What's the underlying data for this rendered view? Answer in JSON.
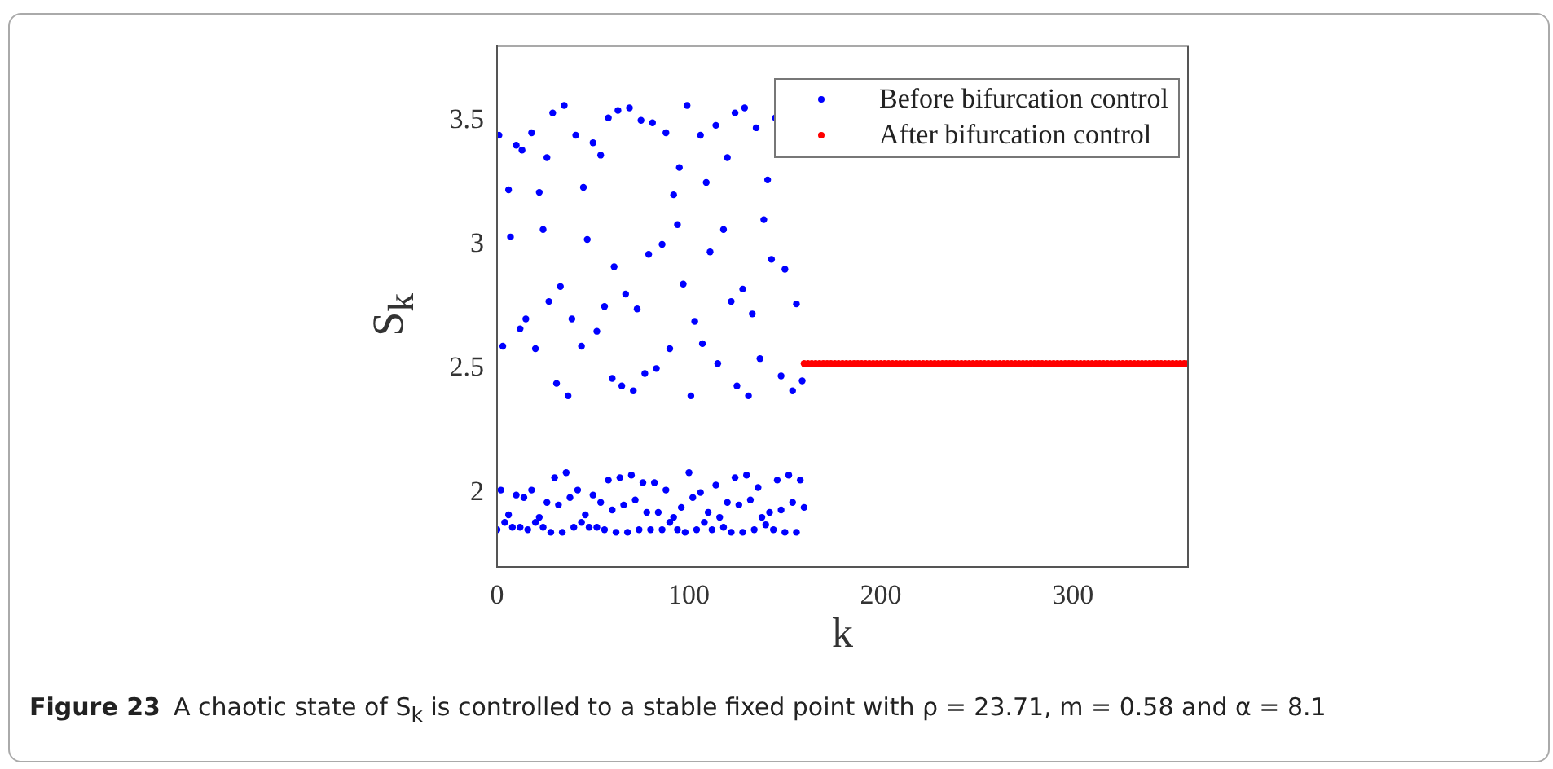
{
  "chart_data": {
    "type": "scatter",
    "xlabel": "k",
    "ylabel": "S$_{k}$",
    "xlim": [
      0,
      360
    ],
    "xticks": [
      0,
      100,
      200,
      300
    ],
    "ylim": [
      1.7,
      3.8
    ],
    "yticks": [
      2,
      2.5,
      3,
      3.5
    ],
    "legend": "top right",
    "marker": "circle",
    "annotations": [
      "Figure 23",
      "A chaotic state of S$_{k}$ is controlled to a stable fixed point with ρ = 23.71, m = 0.58 and α = 8.1"
    ],
    "series": [
      {
        "name": "Before bifurcation control",
        "color": "#0000ff",
        "x": [
          1,
          6,
          7,
          10,
          13,
          18,
          22,
          24,
          26,
          29,
          33,
          35,
          41,
          45,
          47,
          50,
          54,
          58,
          61,
          63,
          67,
          69,
          75,
          79,
          81,
          86,
          88,
          92,
          94,
          95,
          97,
          99,
          106,
          109,
          111,
          114,
          118,
          120,
          124,
          128,
          129,
          135,
          139,
          141,
          143,
          145,
          150,
          3,
          12,
          15,
          20,
          27,
          31,
          37,
          39,
          44,
          52,
          56,
          60,
          65,
          71,
          73,
          77,
          83,
          90,
          101,
          103,
          107,
          115,
          122,
          125,
          131,
          133,
          137,
          148,
          154,
          156,
          159,
          0,
          2,
          4,
          6,
          8,
          10,
          12,
          14,
          16,
          18,
          20,
          22,
          24,
          26,
          28,
          30,
          32,
          34,
          36,
          38,
          40,
          42,
          44,
          46,
          48,
          50,
          52,
          54,
          56,
          58,
          60,
          62,
          64,
          66,
          68,
          70,
          72,
          74,
          76,
          78,
          80,
          82,
          84,
          86,
          88,
          90,
          92,
          94,
          96,
          98,
          100,
          102,
          104,
          106,
          108,
          110,
          112,
          114,
          116,
          118,
          120,
          122,
          124,
          126,
          128,
          130,
          132,
          134,
          136,
          138,
          140,
          142,
          144,
          146,
          148,
          150,
          152,
          154,
          156,
          158,
          160
        ],
        "values": [
          3.44,
          3.22,
          3.03,
          3.4,
          3.38,
          3.45,
          3.21,
          3.06,
          3.35,
          3.53,
          2.83,
          3.56,
          3.44,
          3.23,
          3.02,
          3.41,
          3.36,
          3.51,
          2.91,
          3.54,
          2.8,
          3.55,
          3.5,
          2.96,
          3.49,
          3,
          3.45,
          3.2,
          3.08,
          3.31,
          2.84,
          3.56,
          3.44,
          3.25,
          2.97,
          3.48,
          3.06,
          3.35,
          3.53,
          2.82,
          3.55,
          3.47,
          3.1,
          3.26,
          2.94,
          3.51,
          2.9,
          2.59,
          2.66,
          2.7,
          2.58,
          2.77,
          2.44,
          2.39,
          2.7,
          2.59,
          2.65,
          2.75,
          2.46,
          2.43,
          2.41,
          2.74,
          2.48,
          2.5,
          2.58,
          2.39,
          2.69,
          2.6,
          2.52,
          2.77,
          2.43,
          2.39,
          2.72,
          2.54,
          2.47,
          2.41,
          2.76,
          2.45,
          1.85,
          2.01,
          1.88,
          1.91,
          1.86,
          1.99,
          1.86,
          1.98,
          1.85,
          2.01,
          1.88,
          1.9,
          1.86,
          1.96,
          1.84,
          2.06,
          1.95,
          1.84,
          2.08,
          1.98,
          1.86,
          2.01,
          1.88,
          1.91,
          1.86,
          1.99,
          1.86,
          1.96,
          1.85,
          2.05,
          1.93,
          1.84,
          2.06,
          1.95,
          1.84,
          2.07,
          1.97,
          1.85,
          2.04,
          1.92,
          1.85,
          2.04,
          1.92,
          1.85,
          2.01,
          1.88,
          1.9,
          1.85,
          1.94,
          1.84,
          2.08,
          1.98,
          1.85,
          2,
          1.88,
          1.92,
          1.85,
          2.03,
          1.9,
          1.86,
          1.96,
          1.84,
          2.06,
          1.95,
          1.84,
          2.07,
          1.97,
          1.85,
          2.02,
          1.9,
          1.87,
          1.92,
          1.85,
          2.05,
          1.93,
          1.84,
          2.07,
          1.96,
          1.84,
          2.05,
          1.94
        ]
      },
      {
        "name": "After bifurcation control",
        "color": "#ff0000",
        "x": [
          160,
          162,
          164,
          166,
          168,
          170,
          172,
          174,
          176,
          178,
          180,
          182,
          184,
          186,
          188,
          190,
          192,
          194,
          196,
          198,
          200,
          202,
          204,
          206,
          208,
          210,
          212,
          214,
          216,
          218,
          220,
          222,
          224,
          226,
          228,
          230,
          232,
          234,
          236,
          238,
          240,
          242,
          244,
          246,
          248,
          250,
          252,
          254,
          256,
          258,
          260,
          262,
          264,
          266,
          268,
          270,
          272,
          274,
          276,
          278,
          280,
          282,
          284,
          286,
          288,
          290,
          292,
          294,
          296,
          298,
          300,
          302,
          304,
          306,
          308,
          310,
          312,
          314,
          316,
          318,
          320,
          322,
          324,
          326,
          328,
          330,
          332,
          334,
          336,
          338,
          340,
          342,
          344,
          346,
          348,
          350,
          352,
          354,
          356,
          358,
          360
        ],
        "values": [
          2.52,
          2.52,
          2.52,
          2.52,
          2.52,
          2.52,
          2.52,
          2.52,
          2.52,
          2.52,
          2.52,
          2.52,
          2.52,
          2.52,
          2.52,
          2.52,
          2.52,
          2.52,
          2.52,
          2.52,
          2.52,
          2.52,
          2.52,
          2.52,
          2.52,
          2.52,
          2.52,
          2.52,
          2.52,
          2.52,
          2.52,
          2.52,
          2.52,
          2.52,
          2.52,
          2.52,
          2.52,
          2.52,
          2.52,
          2.52,
          2.52,
          2.52,
          2.52,
          2.52,
          2.52,
          2.52,
          2.52,
          2.52,
          2.52,
          2.52,
          2.52,
          2.52,
          2.52,
          2.52,
          2.52,
          2.52,
          2.52,
          2.52,
          2.52,
          2.52,
          2.52,
          2.52,
          2.52,
          2.52,
          2.52,
          2.52,
          2.52,
          2.52,
          2.52,
          2.52,
          2.52,
          2.52,
          2.52,
          2.52,
          2.52,
          2.52,
          2.52,
          2.52,
          2.52,
          2.52,
          2.52,
          2.52,
          2.52,
          2.52,
          2.52,
          2.52,
          2.52,
          2.52,
          2.52,
          2.52,
          2.52,
          2.52,
          2.52,
          2.52,
          2.52,
          2.52,
          2.52,
          2.52,
          2.52,
          2.52,
          2.52
        ]
      }
    ]
  }
}
